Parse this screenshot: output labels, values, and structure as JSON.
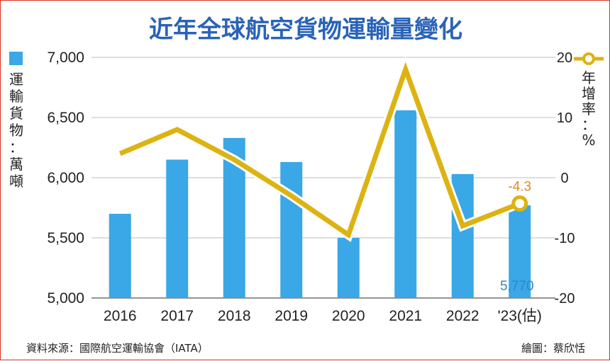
{
  "chart_data": {
    "type": "bar+line",
    "title": "近年全球航空貨物運輸量變化",
    "categories": [
      "2016",
      "2017",
      "2018",
      "2019",
      "2020",
      "2021",
      "2022",
      "'23(估)"
    ],
    "series": [
      {
        "name": "運輸貨物：萬噸",
        "type": "bar",
        "axis": "left",
        "color": "#3aa7e6",
        "values": [
          5700,
          6150,
          6330,
          6130,
          5500,
          6560,
          6030,
          5770
        ]
      },
      {
        "name": "年增率：%",
        "type": "line",
        "axis": "right",
        "color": "#dcb312",
        "values": [
          4,
          8,
          3,
          -3,
          -9.5,
          18,
          -8,
          -4.3
        ]
      }
    ],
    "y_left": {
      "label": "運輸貨物：萬噸",
      "ticks": [
        "7,000",
        "6,500",
        "6,000",
        "5,500",
        "5,000"
      ],
      "ylim": [
        5000,
        7000
      ]
    },
    "y_right": {
      "label": "年增率：%",
      "ticks": [
        "20",
        "10",
        "0",
        "-10",
        "-20"
      ],
      "ylim": [
        -20,
        20
      ]
    },
    "annotations": {
      "line_last": "-4.3",
      "bar_last": "5,770"
    },
    "grid": true,
    "legend": {
      "left": "運輸貨物：萬噸",
      "right": "年增率：%"
    }
  },
  "footer": {
    "source": "資料來源：國際航空運輸協會（IATA）",
    "credit": "繪圖：蔡欣恬"
  }
}
